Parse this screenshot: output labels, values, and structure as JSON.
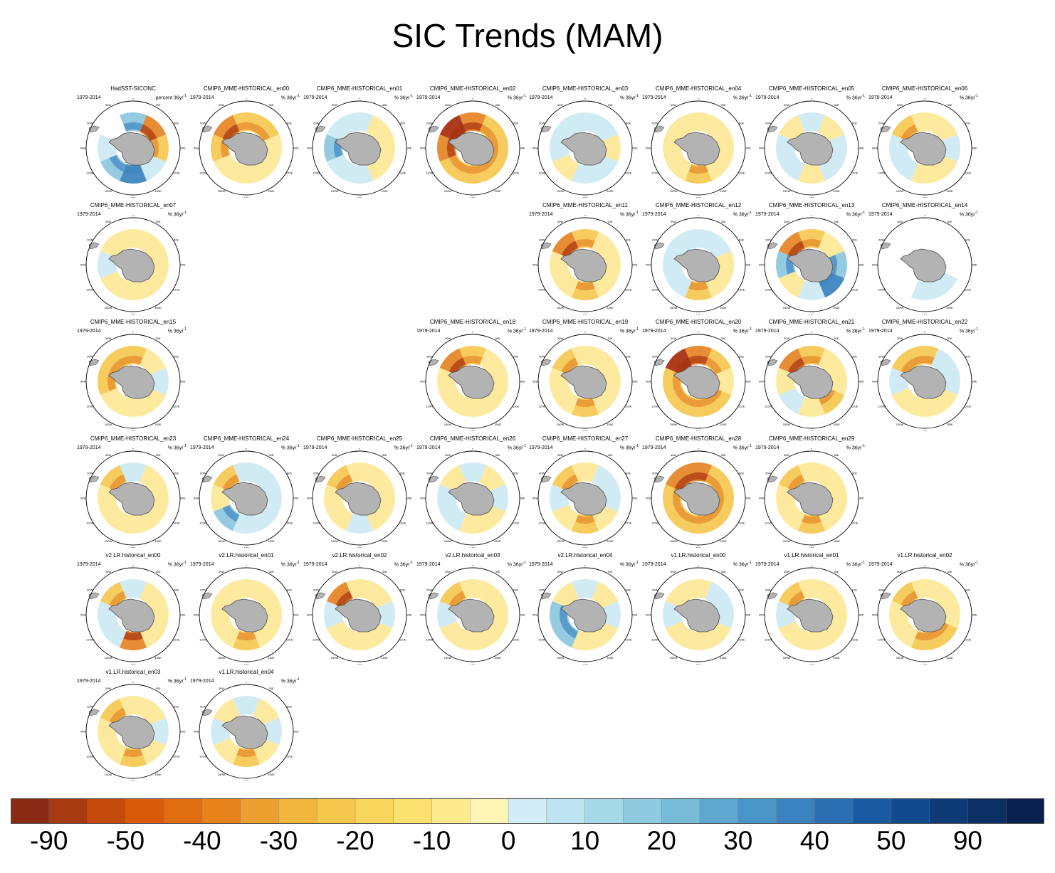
{
  "title": "SIC Trends (MAM)",
  "chart_data": {
    "type": "heatmap",
    "title": "SIC Trends (MAM)",
    "description_units": "% 36yr-1",
    "period": "1979-2014",
    "panels": [
      {
        "name": "HadSST-SICONC",
        "years": "1979-2014",
        "units": "percent 36yr",
        "sup": "-1",
        "pattern": [
          2,
          -3,
          -2,
          1,
          3,
          2,
          1,
          0
        ]
      },
      {
        "name": "CMIP6_MME-HISTORICAL_en00",
        "years": "1979-2014",
        "units": "% 36yr",
        "sup": "-1",
        "pattern": [
          -2,
          -2,
          -1,
          -1,
          -1,
          -1,
          -2,
          -3
        ]
      },
      {
        "name": "CMIP6_MME-HISTORICAL_en01",
        "years": "1979-2014",
        "units": "% 36yr",
        "sup": "-1",
        "pattern": [
          1,
          -1,
          -1,
          -1,
          1,
          1,
          2,
          1
        ]
      },
      {
        "name": "CMIP6_MME-HISTORICAL_en02",
        "years": "1979-2014",
        "units": "% 36yr",
        "sup": "-1",
        "pattern": [
          -3,
          -2,
          -2,
          -2,
          -2,
          -2,
          -3,
          -4
        ]
      },
      {
        "name": "CMIP6_MME-HISTORICAL_en03",
        "years": "1979-2014",
        "units": "% 36yr",
        "sup": "-1",
        "pattern": [
          1,
          1,
          -1,
          1,
          1,
          -1,
          1,
          1
        ]
      },
      {
        "name": "CMIP6_MME-HISTORICAL_en04",
        "years": "1979-2014",
        "units": "% 36yr",
        "sup": "-1",
        "pattern": [
          -1,
          -1,
          -1,
          -1,
          -2,
          -1,
          -1,
          -1
        ]
      },
      {
        "name": "CMIP6_MME-HISTORICAL_en05",
        "years": "1979-2014",
        "units": "% 36yr",
        "sup": "-1",
        "pattern": [
          1,
          -1,
          1,
          1,
          -1,
          1,
          1,
          -1
        ]
      },
      {
        "name": "CMIP6_MME-HISTORICAL_en06",
        "years": "1979-2014",
        "units": "% 36yr",
        "sup": "-1",
        "pattern": [
          -1,
          -1,
          1,
          -1,
          -1,
          1,
          1,
          -2
        ]
      },
      {
        "name": "CMIP6_MME-HISTORICAL_en07",
        "years": "1979-2014",
        "units": "% 36yr",
        "sup": "-1",
        "pattern": [
          -1,
          -1,
          -1,
          -1,
          -1,
          -1,
          1,
          -1
        ]
      },
      {
        "name": "CMIP6_MME-HISTORICAL_en11",
        "years": "1979-2014",
        "units": "% 36yr",
        "sup": "-1",
        "pattern": [
          -2,
          -1,
          -1,
          -1,
          -2,
          -1,
          -1,
          -3
        ]
      },
      {
        "name": "CMIP6_MME-HISTORICAL_en12",
        "years": "1979-2014",
        "units": "% 36yr",
        "sup": "-1",
        "pattern": [
          1,
          1,
          -1,
          -1,
          -2,
          1,
          1,
          1
        ]
      },
      {
        "name": "CMIP6_MME-HISTORICAL_en13",
        "years": "1979-2014",
        "units": "% 36yr",
        "sup": "-1",
        "pattern": [
          -2,
          -1,
          2,
          3,
          1,
          -1,
          2,
          -3
        ]
      },
      {
        "name": "CMIP6_MME-HISTORICAL_en14",
        "years": "1979-2014",
        "units": "% 36yr",
        "sup": "-1",
        "pattern": [
          0,
          0,
          0,
          1,
          1,
          0,
          0,
          0
        ]
      },
      {
        "name": "CMIP6_MME-HISTORICAL_en15",
        "years": "1979-2014",
        "units": "% 36yr",
        "sup": "-1",
        "pattern": [
          -2,
          -1,
          1,
          -1,
          -1,
          -1,
          -2,
          -2
        ]
      },
      {
        "name": "CMIP6_MME-HISTORICAL_en18",
        "years": "1979-2014",
        "units": "% 36yr",
        "sup": "-1",
        "pattern": [
          -2,
          -1,
          -1,
          -1,
          -1,
          -1,
          -1,
          -3
        ]
      },
      {
        "name": "CMIP6_MME-HISTORICAL_en19",
        "years": "1979-2014",
        "units": "% 36yr",
        "sup": "-1",
        "pattern": [
          -1,
          -1,
          -1,
          -1,
          -2,
          -1,
          -1,
          -2
        ]
      },
      {
        "name": "CMIP6_MME-HISTORICAL_en20",
        "years": "1979-2014",
        "units": "% 36yr",
        "sup": "-1",
        "pattern": [
          -3,
          -2,
          -1,
          -2,
          -2,
          -2,
          -2,
          -4
        ]
      },
      {
        "name": "CMIP6_MME-HISTORICAL_en21",
        "years": "1979-2014",
        "units": "% 36yr",
        "sup": "-1",
        "pattern": [
          -2,
          -1,
          -1,
          -2,
          -1,
          1,
          -1,
          -3
        ]
      },
      {
        "name": "CMIP6_MME-HISTORICAL_en22",
        "years": "1979-2014",
        "units": "% 36yr",
        "sup": "-1",
        "pattern": [
          -2,
          1,
          1,
          -1,
          -1,
          -1,
          1,
          -2
        ]
      },
      {
        "name": "CMIP6_MME-HISTORICAL_en23",
        "years": "1979-2014",
        "units": "% 36yr",
        "sup": "-1",
        "pattern": [
          1,
          -1,
          -1,
          -1,
          -1,
          -1,
          -1,
          -2
        ]
      },
      {
        "name": "CMIP6_MME-HISTORICAL_en24",
        "years": "1979-2014",
        "units": "% 36yr",
        "sup": "-1",
        "pattern": [
          1,
          1,
          1,
          1,
          1,
          2,
          -1,
          -2
        ]
      },
      {
        "name": "CMIP6_MME-HISTORICAL_en25",
        "years": "1979-2014",
        "units": "% 36yr",
        "sup": "-1",
        "pattern": [
          -1,
          -1,
          -1,
          -1,
          1,
          -1,
          -1,
          -2
        ]
      },
      {
        "name": "CMIP6_MME-HISTORICAL_en26",
        "years": "1979-2014",
        "units": "% 36yr",
        "sup": "-1",
        "pattern": [
          1,
          -1,
          1,
          -1,
          -1,
          1,
          1,
          -1
        ]
      },
      {
        "name": "CMIP6_MME-HISTORICAL_en27",
        "years": "1979-2014",
        "units": "% 36yr",
        "sup": "-1",
        "pattern": [
          -1,
          1,
          1,
          -1,
          -2,
          -1,
          1,
          -2
        ]
      },
      {
        "name": "CMIP6_MME-HISTORICAL_en28",
        "years": "1979-2014",
        "units": "% 36yr",
        "sup": "-1",
        "pattern": [
          -3,
          -2,
          -2,
          -2,
          -2,
          -2,
          -2,
          -3
        ]
      },
      {
        "name": "CMIP6_MME-HISTORICAL_en29",
        "years": "1979-2014",
        "units": "% 36yr",
        "sup": "-1",
        "pattern": [
          -1,
          -1,
          -1,
          -1,
          -2,
          -1,
          -1,
          -2
        ]
      },
      {
        "name": "v2.LR.historical_en00",
        "years": "1979-2014",
        "units": "% 36yr",
        "sup": "-1",
        "pattern": [
          1,
          -1,
          -1,
          -1,
          -3,
          1,
          1,
          -2
        ]
      },
      {
        "name": "v2.LR.historical_en01",
        "years": "1979-2014",
        "units": "% 36yr",
        "sup": "-1",
        "pattern": [
          -1,
          -1,
          -1,
          -1,
          -2,
          -1,
          -1,
          -1
        ]
      },
      {
        "name": "v2.LR.historical_en02",
        "years": "1979-2014",
        "units": "% 36yr",
        "sup": "-1",
        "pattern": [
          -1,
          -1,
          1,
          -1,
          -1,
          -1,
          1,
          -3
        ]
      },
      {
        "name": "v2.LR.historical_en03",
        "years": "1979-2014",
        "units": "% 36yr",
        "sup": "-1",
        "pattern": [
          -1,
          -1,
          -1,
          -1,
          -1,
          -1,
          1,
          -2
        ]
      },
      {
        "name": "v2.LR.historical_en04",
        "years": "1979-2014",
        "units": "% 36yr",
        "sup": "-1",
        "pattern": [
          1,
          -1,
          1,
          -1,
          -1,
          2,
          2,
          -1
        ]
      },
      {
        "name": "v1.LR.historical_en00",
        "years": "1979-2014",
        "units": "% 36yr",
        "sup": "-1",
        "pattern": [
          -1,
          1,
          1,
          -1,
          -1,
          -1,
          1,
          -1
        ]
      },
      {
        "name": "v1.LR.historical_en01",
        "years": "1979-2014",
        "units": "% 36yr",
        "sup": "-1",
        "pattern": [
          -1,
          -1,
          -1,
          -1,
          -1,
          -1,
          1,
          -2
        ]
      },
      {
        "name": "v1.LR.historical_en02",
        "years": "1979-2014",
        "units": "% 36yr",
        "sup": "-1",
        "pattern": [
          -1,
          -1,
          -1,
          -2,
          -2,
          -1,
          -1,
          -2
        ]
      },
      {
        "name": "v1.LR.historical_en03",
        "years": "1979-2014",
        "units": "% 36yr",
        "sup": "-1",
        "pattern": [
          -1,
          -1,
          1,
          -1,
          -2,
          -1,
          -1,
          -2
        ]
      },
      {
        "name": "v1.LR.historical_en04",
        "years": "1979-2014",
        "units": "% 36yr",
        "sup": "-1",
        "pattern": [
          1,
          -1,
          1,
          -1,
          -2,
          -1,
          1,
          -1
        ]
      }
    ],
    "map_labels": {
      "lon_labels": [
        "0",
        "30W",
        "30E",
        "60W",
        "60E",
        "90W",
        "90E",
        "120W",
        "120E",
        "150W",
        "150E",
        "180"
      ]
    },
    "colorbar": {
      "levels": [
        -90,
        -50,
        -40,
        -30,
        -20,
        -10,
        0,
        10,
        20,
        30,
        40,
        50,
        90
      ],
      "tick_labels": [
        "-90",
        "-50",
        "-40",
        "-30",
        "-20",
        "-10",
        "0",
        "10",
        "20",
        "30",
        "40",
        "50",
        "90"
      ],
      "colors": [
        "#8a2a14",
        "#a83a12",
        "#c44a0c",
        "#d95b0a",
        "#e06e10",
        "#e8821a",
        "#eda030",
        "#f2b63e",
        "#f5c94e",
        "#f8d65c",
        "#fbe170",
        "#fdeb8e",
        "#fef5b4",
        "#d2edf6",
        "#bde4f0",
        "#a6d9e8",
        "#8ecbe0",
        "#78bcd8",
        "#5fa8d0",
        "#4a95c8",
        "#3a82c0",
        "#2b6fb3",
        "#1a5aa0",
        "#104a8c",
        "#0c3b76",
        "#0a2f62",
        "#08214e"
      ]
    }
  },
  "palette": {
    "land": "#b3b3b3",
    "coast": "#4a4a4a",
    "frame": "#000000",
    "neg1": "#fde99a",
    "neg2": "#f5c956",
    "neg3": "#e5872a",
    "neg4": "#a83210",
    "pos1": "#cfeaf4",
    "pos2": "#8ec8df",
    "pos3": "#3f86c1"
  }
}
